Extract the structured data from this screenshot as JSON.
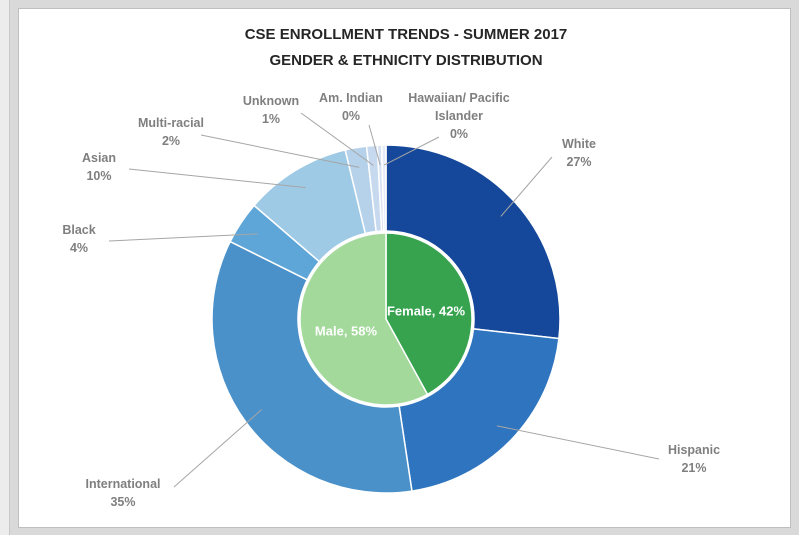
{
  "chart_data": {
    "type": "nested-pie",
    "title": "CSE ENROLLMENT TRENDS - SUMMER 2017",
    "subtitle": "GENDER & ETHNICITY DISTRIBUTION",
    "series": [
      {
        "name": "Gender",
        "type": "pie",
        "categories": [
          "Female",
          "Male"
        ],
        "values": [
          42,
          58
        ],
        "value_labels": [
          "Female, 42%",
          "Male, 58%"
        ],
        "colors": [
          "#37a34f",
          "#a3d99b"
        ]
      },
      {
        "name": "Ethnicity",
        "type": "donut",
        "categories": [
          "White",
          "Hispanic",
          "International",
          "Black",
          "Asian",
          "Multi-racial",
          "Unknown",
          "Am. Indian",
          "Hawaiian/ Pacific Islander"
        ],
        "values": [
          27,
          21,
          35,
          4,
          10,
          2,
          1,
          0.4,
          0.4
        ],
        "value_labels": [
          "27%",
          "21%",
          "35%",
          "4%",
          "10%",
          "2%",
          "1%",
          "0%",
          "0%"
        ],
        "colors": [
          "#15479a",
          "#2f74bf",
          "#4a90c9",
          "#5ea5d8",
          "#9ecae6",
          "#b5d2ea",
          "#c6d9ee",
          "#d5e2f1",
          "#e4edf7"
        ]
      }
    ]
  }
}
